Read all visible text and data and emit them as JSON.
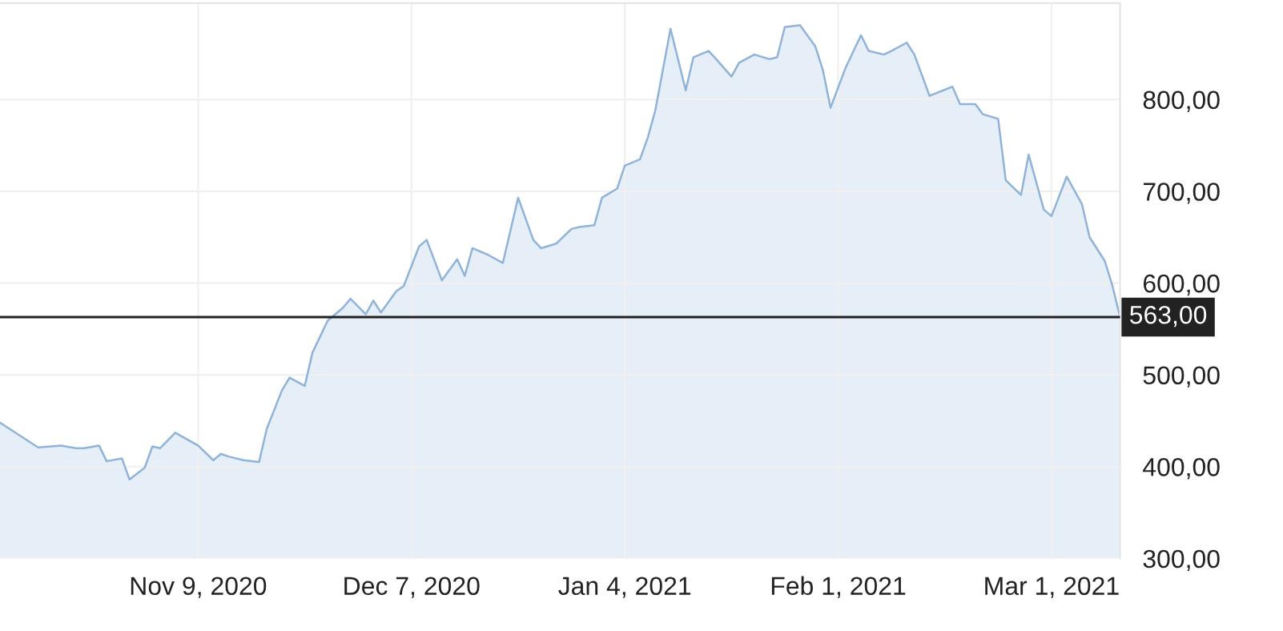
{
  "chart_data": {
    "type": "area",
    "x": [
      "2020-10-14",
      "2020-10-19",
      "2020-10-22",
      "2020-10-24",
      "2020-10-25",
      "2020-10-27",
      "2020-10-28",
      "2020-10-30",
      "2020-10-31",
      "2020-11-02",
      "2020-11-03",
      "2020-11-04",
      "2020-11-06",
      "2020-11-09",
      "2020-11-11",
      "2020-11-12",
      "2020-11-13",
      "2020-11-15",
      "2020-11-17",
      "2020-11-18",
      "2020-11-20",
      "2020-11-21",
      "2020-11-23",
      "2020-11-24",
      "2020-11-26",
      "2020-11-28",
      "2020-11-29",
      "2020-12-01",
      "2020-12-02",
      "2020-12-03",
      "2020-12-05",
      "2020-12-06",
      "2020-12-08",
      "2020-12-09",
      "2020-12-11",
      "2020-12-13",
      "2020-12-14",
      "2020-12-15",
      "2020-12-17",
      "2020-12-19",
      "2020-12-21",
      "2020-12-23",
      "2020-12-24",
      "2020-12-26",
      "2020-12-28",
      "2020-12-29",
      "2020-12-31",
      "2021-01-01",
      "2021-01-03",
      "2021-01-04",
      "2021-01-06",
      "2021-01-07",
      "2021-01-08",
      "2021-01-10",
      "2021-01-12",
      "2021-01-13",
      "2021-01-15",
      "2021-01-16",
      "2021-01-18",
      "2021-01-19",
      "2021-01-21",
      "2021-01-23",
      "2021-01-24",
      "2021-01-25",
      "2021-01-27",
      "2021-01-29",
      "2021-01-30",
      "2021-01-31",
      "2021-02-02",
      "2021-02-04",
      "2021-02-05",
      "2021-02-07",
      "2021-02-08",
      "2021-02-10",
      "2021-02-11",
      "2021-02-13",
      "2021-02-16",
      "2021-02-17",
      "2021-02-19",
      "2021-02-20",
      "2021-02-22",
      "2021-02-23",
      "2021-02-25",
      "2021-02-26",
      "2021-02-28",
      "2021-03-01",
      "2021-03-03",
      "2021-03-05",
      "2021-03-06",
      "2021-03-08",
      "2021-03-09",
      "2021-03-10"
    ],
    "series": [
      {
        "color": "#8fb3d9",
        "values": [
          448,
          421,
          423,
          420,
          420,
          423,
          406,
          409,
          386,
          399,
          422,
          420,
          437,
          423,
          407,
          414,
          411,
          407,
          405,
          441,
          483,
          497,
          488,
          524,
          559,
          573,
          583,
          566,
          581,
          568,
          591,
          597,
          640,
          647,
          603,
          626,
          608,
          638,
          631,
          622,
          693,
          647,
          638,
          643,
          659,
          661,
          663,
          693,
          703,
          728,
          735,
          758,
          788,
          877,
          810,
          846,
          853,
          844,
          825,
          840,
          849,
          844,
          846,
          879,
          881,
          858,
          832,
          791,
          835,
          870,
          853,
          849,
          853,
          862,
          849,
          804,
          814,
          795,
          795,
          784,
          779,
          712,
          696,
          740,
          680,
          673,
          716,
          686,
          650,
          624,
          597,
          563
        ]
      }
    ],
    "xlim": [
      "2020-10-14",
      "2021-03-10"
    ],
    "xticks": [
      {
        "value": "2020-11-09",
        "label": "Nov 9, 2020"
      },
      {
        "value": "2020-12-07",
        "label": "Dec 7, 2020"
      },
      {
        "value": "2021-01-04",
        "label": "Jan 4, 2021"
      },
      {
        "value": "2021-02-01",
        "label": "Feb 1, 2021"
      },
      {
        "value": "2021-03-01",
        "label": "Mar 1, 2021"
      }
    ],
    "ylim": [
      300,
      905
    ],
    "yticks": [
      {
        "value": 300,
        "label": "300,00"
      },
      {
        "value": 400,
        "label": "400,00"
      },
      {
        "value": 500,
        "label": "500,00"
      },
      {
        "value": 600,
        "label": "600,00"
      },
      {
        "value": 700,
        "label": "700,00"
      },
      {
        "value": 800,
        "label": "800,00"
      }
    ],
    "ref_lines": [
      {
        "axis": "y",
        "value": 563,
        "label": "563,00",
        "color": "#222222"
      }
    ],
    "grid": true
  }
}
